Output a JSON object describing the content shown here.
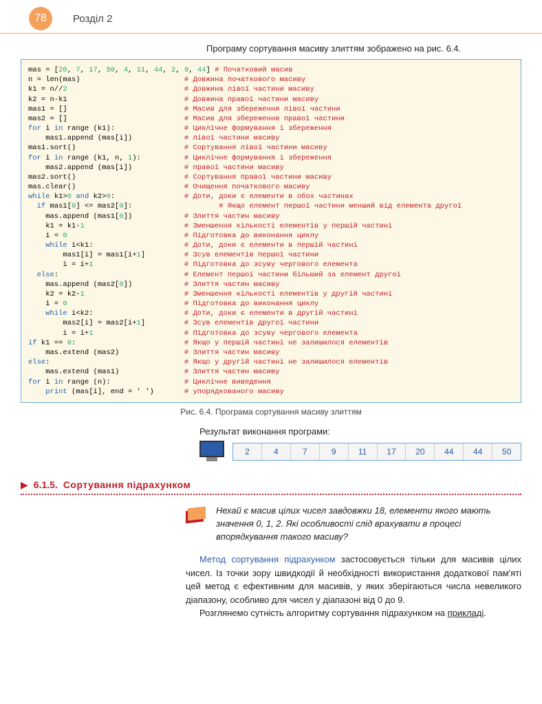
{
  "header": {
    "page_number": "78",
    "section": "Розділ 2"
  },
  "intro": "Програму сортування масиву злиттям зображено на рис. 6.4.",
  "code": {
    "lines": [
      {
        "c": "mas = [<span class='num'>20</span>, <span class='num'>7</span>, <span class='num'>17</span>, <span class='num'>50</span>, <span class='num'>4</span>, <span class='num'>11</span>, <span class='num'>44</span>, <span class='num'>2</span>, <span class='num'>9</span>, <span class='num'>44</span>]",
        "cm": "# Початковий масив"
      },
      {
        "c": "n = len(mas)",
        "cm": "# Довжина початкового масиву"
      },
      {
        "c": "k1 = n//<span class='num'>2</span>",
        "cm": "# Довжина лівої частини масиву"
      },
      {
        "c": "k2 = n-k1",
        "cm": "# Довжина правої частини масиву"
      },
      {
        "c": "mas1 = []",
        "cm": "# Масив для збереження лівої частини"
      },
      {
        "c": "mas2 = []",
        "cm": "# Масив для збереження правої частини"
      },
      {
        "c": "<span class='kw'>for</span> i <span class='kw'>in</span> range (k1):",
        "cm": "# Циклічне формування і збереження"
      },
      {
        "c": "    mas1.append (mas[i])",
        "cm": "# лівої частини масиву"
      },
      {
        "c": "mas1.sort()",
        "cm": "# Сортування лівої частини масиву"
      },
      {
        "c": "<span class='kw'>for</span> i <span class='kw'>in</span> range (k1, n, <span class='num'>1</span>):",
        "cm": "# Циклічне формування і збереження"
      },
      {
        "c": "    mas2.append (mas[i])",
        "cm": "# правої частини масиву"
      },
      {
        "c": "mas2.sort()",
        "cm": "# Сортування правої частини масиву"
      },
      {
        "c": "mas.clear()",
        "cm": "# Очищення початкового масиву"
      },
      {
        "c": "<span class='kw'>while</span> k1><span class='num'>0</span> <span class='kw'>and</span> k2><span class='num'>0</span>:",
        "cm": "# Доти, доки є елементи в обох частинах"
      },
      {
        "c": "  <span class='kw'>if</span> mas1[<span class='num'>0</span>] <= mas2[<span class='num'>0</span>]:",
        "cm": "# Якщо елемент першої частини менший від елемента другої"
      },
      {
        "c": "    mas.append (mas1[<span class='num'>0</span>])",
        "cm": "# Злиття частин масиву"
      },
      {
        "c": "    k1 = k1-<span class='num'>1</span>",
        "cm": "# Зменшення кількості елементів у першій частині"
      },
      {
        "c": "    i = <span class='num'>0</span>",
        "cm": "# Підготовка до виконання циклу"
      },
      {
        "c": "    <span class='kw'>while</span> i&lt;k1:",
        "cm": "# Доти, доки є елементи в першій частині"
      },
      {
        "c": "        mas1[i] = mas1[i+<span class='num'>1</span>]",
        "cm": "# Зсув елементів першої частини"
      },
      {
        "c": "        i = i+<span class='num'>1</span>",
        "cm": "# Підготовка до зсуву чергового елемента"
      },
      {
        "c": "  <span class='kw'>else</span>:",
        "cm": "# Елемент першої частини більший за елемент другої"
      },
      {
        "c": "    mas.append (mas2[<span class='num'>0</span>])",
        "cm": "# Злиття частин масиву"
      },
      {
        "c": "    k2 = k2-<span class='num'>1</span>",
        "cm": "# Зменшення кількості елементів у другій частині"
      },
      {
        "c": "    i = <span class='num'>0</span>",
        "cm": "# Підготовка до виконання циклу"
      },
      {
        "c": "    <span class='kw'>while</span> i&lt;k2:",
        "cm": "# Доти, доки є елементи в другій частині"
      },
      {
        "c": "        mas2[i] = mas2[i+<span class='num'>1</span>]",
        "cm": "# Зсув елементів другої частини"
      },
      {
        "c": "        i = i+<span class='num'>1</span>",
        "cm": "# Підготовка до зсуву чергового елемента"
      },
      {
        "c": "<span class='kw'>if</span> k1 == <span class='num'>0</span>:",
        "cm": "# Якщо у першій частині не залишилося елементів"
      },
      {
        "c": "    mas.extend (mas2)",
        "cm": "# Злиття частин масиву"
      },
      {
        "c": "<span class='kw'>else</span>:",
        "cm": "# Якщо у другій частині не залишилося елементів"
      },
      {
        "c": "    mas.extend (mas1)",
        "cm": "# Злиття частин масиву"
      },
      {
        "c": "<span class='kw'>for</span> i <span class='kw'>in</span> range (n):",
        "cm": "# Циклічне виведення"
      },
      {
        "c": "    <span class='kw'>print</span> (mas[i], end = ' ')",
        "cm": "# упорядкованого масиву"
      }
    ],
    "comment_col": 36
  },
  "fig_caption": "Рис. 6.4. Програма сортування масиву злиттям",
  "result": {
    "label": "Результат виконання програми:",
    "values": [
      "2",
      "4",
      "7",
      "9",
      "11",
      "17",
      "20",
      "44",
      "44",
      "50"
    ]
  },
  "subsection": {
    "arrow": "▶",
    "num": "6.1.5.",
    "title": "Сортування підрахунком"
  },
  "callout": "Нехай є масив цілих чисел завдовжки 18, елементи якого мають значення 0, 1, 2. Які особливості слід врахувати в процесі впорядкування такого масиву?",
  "body": {
    "term": "Метод сортування підрахунком",
    "p1_rest": " застосовується тільки для масивів цілих чисел. Із точки зору швидкодії й необхідності використання додаткової пам'яті цей метод є ефективним для масивів, у яких зберігаються числа невеликого діапазону, особливо для чисел у діапазоні від 0 до 9.",
    "p2_start": "Розглянемо сутність алгоритму сортування підрахунком на ",
    "p2_link": "прикладі",
    "p2_end": "."
  },
  "colors": {
    "orange": "#f5a05a",
    "red": "#c01c28",
    "blue": "#2a5caa",
    "code_bg": "#fdf8e6",
    "code_border": "#6aa5d8"
  }
}
